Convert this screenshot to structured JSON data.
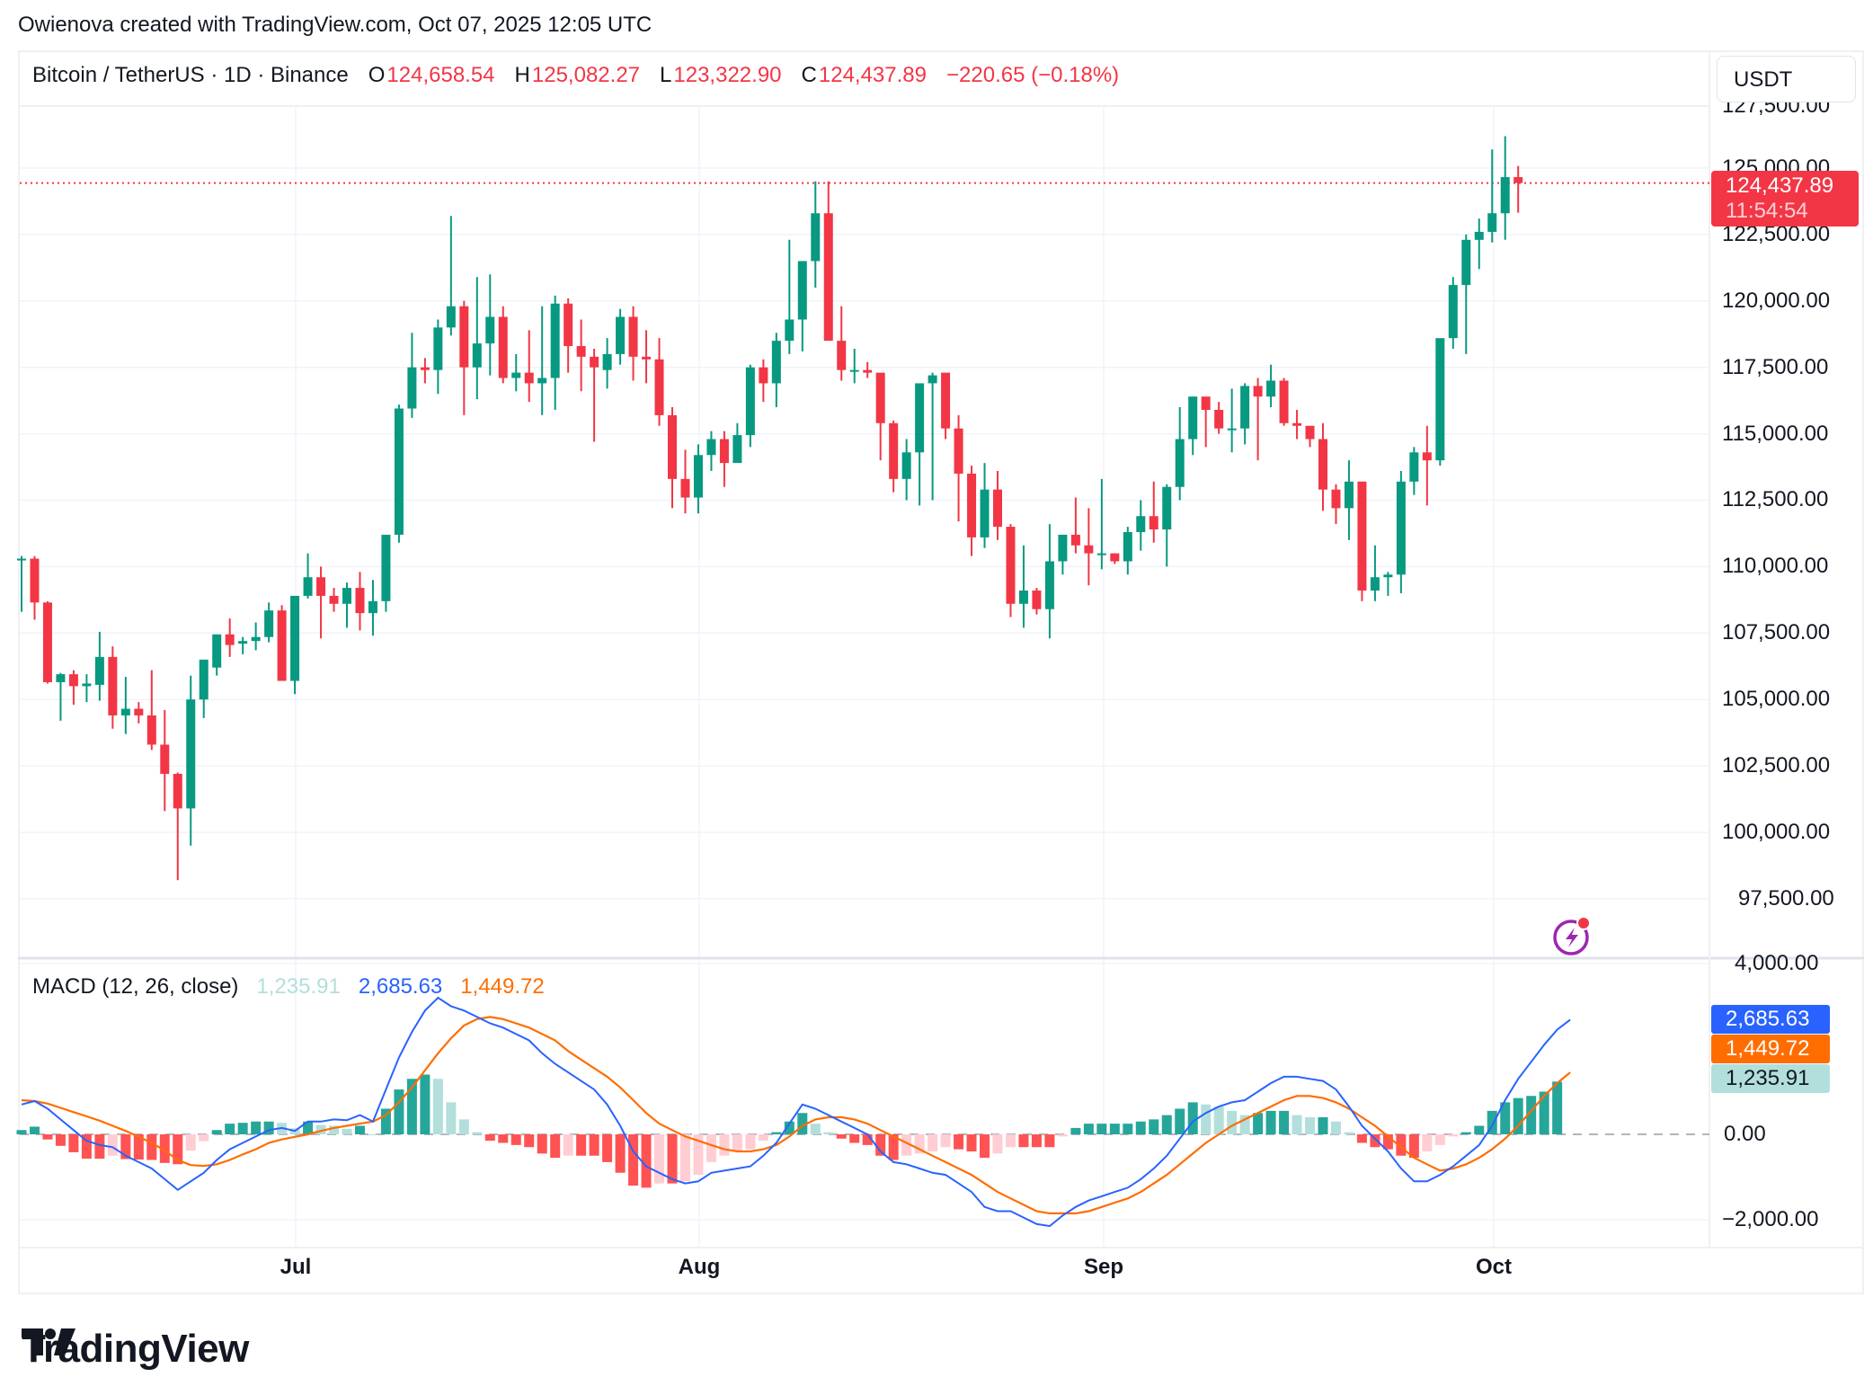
{
  "header": {
    "credit": "Owienova created with TradingView.com, Oct 07, 2025 12:05 UTC"
  },
  "legend": {
    "symbol": "Bitcoin / TetherUS · 1D · Binance",
    "open_label": "O",
    "open": "124,658.54",
    "high_label": "H",
    "high": "125,082.27",
    "low_label": "L",
    "low": "123,322.90",
    "close_label": "C",
    "close": "124,437.89",
    "change": "−220.65 (−0.18%)"
  },
  "currency_button": {
    "label": "USDT"
  },
  "price_axis": {
    "labels": [
      "127,500.00",
      "125,000.00",
      "122,500.00",
      "120,000.00",
      "117,500.00",
      "115,000.00",
      "112,500.00",
      "110,000.00",
      "107,500.00",
      "105,000.00",
      "102,500.00",
      "100,000.00",
      "97,500.00"
    ],
    "last_price": "124,437.89",
    "countdown": "11:54:54"
  },
  "macd": {
    "title": "MACD (12, 26, close)",
    "histogram": "1,235.91",
    "macd": "2,685.63",
    "signal": "1,449.72",
    "axis_labels": [
      "4,000.00",
      "0.00",
      "−2,000.00"
    ]
  },
  "time_axis": {
    "labels": [
      "Jul",
      "Aug",
      "Sep",
      "Oct"
    ]
  },
  "branding": {
    "logo_text": "TradingView"
  },
  "colors": {
    "up": "#089981",
    "down": "#f23645",
    "macd_line": "#2962ff",
    "signal_line": "#ff6d00",
    "hist_up_strong": "#26a69a",
    "hist_up_weak": "#b2dfdb",
    "hist_down_strong": "#ff5252",
    "hist_down_weak": "#ffcdd2",
    "grid": "#f0f3fa",
    "alert_icon": "#9c27b0"
  },
  "chart_data": [
    {
      "type": "candlestick",
      "title": "Bitcoin / TetherUS · 1D · Binance",
      "xlabel": "",
      "ylabel": "USDT",
      "ylim": [
        95000,
        128500
      ],
      "x_ticks": [
        "Jul",
        "Aug",
        "Sep",
        "Oct"
      ],
      "start_date": "2025-06-10",
      "end_date": "2025-10-07",
      "ohlc": [
        [
          110260,
          110400,
          108300,
          110300
        ],
        [
          110300,
          110400,
          108000,
          108650
        ],
        [
          108650,
          108700,
          105600,
          105650
        ],
        [
          105650,
          106000,
          104200,
          105950
        ],
        [
          105950,
          106100,
          104800,
          105500
        ],
        [
          105500,
          105950,
          104900,
          105600
        ],
        [
          105550,
          107550,
          104950,
          106600
        ],
        [
          106600,
          107000,
          103900,
          104400
        ],
        [
          104400,
          105850,
          103700,
          104650
        ],
        [
          104650,
          104900,
          104100,
          104400
        ],
        [
          104400,
          106100,
          103100,
          103300
        ],
        [
          103300,
          104600,
          100800,
          102200
        ],
        [
          102200,
          102250,
          98200,
          100900
        ],
        [
          100900,
          105900,
          99500,
          105000
        ],
        [
          105000,
          106300,
          104300,
          106500
        ],
        [
          106200,
          107350,
          105900,
          107450
        ],
        [
          107450,
          108050,
          106600,
          107050
        ],
        [
          107100,
          107350,
          106700,
          107200
        ],
        [
          107200,
          107900,
          106850,
          107350
        ],
        [
          107350,
          108650,
          107150,
          108350
        ],
        [
          108350,
          108550,
          105700,
          105700
        ],
        [
          105700,
          108400,
          105200,
          108900
        ],
        [
          108900,
          110500,
          108800,
          109600
        ],
        [
          109600,
          110000,
          107300,
          108900
        ],
        [
          108900,
          109200,
          108300,
          108600
        ],
        [
          108600,
          109400,
          107700,
          109200
        ],
        [
          109200,
          109800,
          107600,
          108250
        ],
        [
          108250,
          109500,
          107400,
          108700
        ],
        [
          108700,
          111000,
          108300,
          111200
        ],
        [
          111200,
          116100,
          110900,
          115950
        ],
        [
          115950,
          118800,
          115600,
          117500
        ],
        [
          117500,
          117850,
          116900,
          117400
        ],
        [
          117400,
          119300,
          116500,
          119000
        ],
        [
          119000,
          123200,
          118700,
          119800
        ],
        [
          119800,
          120000,
          115700,
          117500
        ],
        [
          117500,
          120900,
          116300,
          118400
        ],
        [
          118400,
          121000,
          117200,
          119400
        ],
        [
          119400,
          119800,
          116900,
          117100
        ],
        [
          117100,
          118000,
          116600,
          117300
        ],
        [
          117300,
          118900,
          116200,
          116900
        ],
        [
          116900,
          119800,
          115700,
          117100
        ],
        [
          117100,
          120200,
          115900,
          119900
        ],
        [
          119900,
          120100,
          117300,
          118300
        ],
        [
          118300,
          119300,
          116600,
          117900
        ],
        [
          117900,
          118200,
          114700,
          117500
        ],
        [
          117400,
          118600,
          116700,
          118000
        ],
        [
          118000,
          119700,
          117600,
          119400
        ],
        [
          119400,
          119800,
          117000,
          117900
        ],
        [
          117900,
          118900,
          116900,
          117800
        ],
        [
          117800,
          118600,
          115300,
          115700
        ],
        [
          115700,
          116000,
          112200,
          113300
        ],
        [
          113300,
          114400,
          112000,
          112600
        ],
        [
          112600,
          114600,
          112000,
          114200
        ],
        [
          114200,
          115100,
          113600,
          114800
        ],
        [
          114800,
          115100,
          113000,
          113900
        ],
        [
          113900,
          115400,
          114000,
          114950
        ],
        [
          114950,
          117600,
          114500,
          117500
        ],
        [
          117500,
          117800,
          116200,
          116900
        ],
        [
          116900,
          118800,
          116000,
          118500
        ],
        [
          118500,
          122300,
          118000,
          119300
        ],
        [
          119300,
          121500,
          118100,
          121500
        ],
        [
          121500,
          124500,
          120500,
          123300
        ],
        [
          123300,
          124500,
          118800,
          118500
        ],
        [
          118500,
          119800,
          117000,
          117400
        ],
        [
          117400,
          118200,
          116900,
          117400
        ],
        [
          117400,
          117700,
          117100,
          117300
        ],
        [
          117300,
          117200,
          114000,
          115400
        ],
        [
          115400,
          115500,
          112800,
          113300
        ],
        [
          113300,
          114800,
          112500,
          114300
        ],
        [
          114300,
          116300,
          112300,
          116900
        ],
        [
          116900,
          117300,
          112500,
          117200
        ],
        [
          117300,
          117200,
          114800,
          115200
        ],
        [
          115200,
          115700,
          111700,
          113500
        ],
        [
          113500,
          113800,
          110400,
          111100
        ],
        [
          111100,
          113900,
          110700,
          112900
        ],
        [
          112900,
          113600,
          111000,
          111500
        ],
        [
          111500,
          111600,
          108100,
          108600
        ],
        [
          108600,
          110800,
          107700,
          109100
        ],
        [
          109100,
          109200,
          108200,
          108400
        ],
        [
          108400,
          111600,
          107300,
          110200
        ],
        [
          110200,
          111200,
          109700,
          111200
        ],
        [
          111200,
          112600,
          110500,
          110800
        ],
        [
          110800,
          112200,
          109300,
          110500
        ],
        [
          110500,
          113300,
          109900,
          110500
        ],
        [
          110500,
          110500,
          110100,
          110200
        ],
        [
          110200,
          111500,
          109700,
          111300
        ],
        [
          111300,
          112500,
          110600,
          111900
        ],
        [
          111900,
          113200,
          110900,
          111400
        ],
        [
          111400,
          113100,
          110000,
          113000
        ],
        [
          113000,
          116000,
          112500,
          114800
        ],
        [
          114800,
          116400,
          114200,
          116400
        ],
        [
          116400,
          116300,
          114500,
          115900
        ],
        [
          115900,
          116200,
          115000,
          115200
        ],
        [
          115200,
          116700,
          114300,
          115200
        ],
        [
          115200,
          116900,
          114600,
          116800
        ],
        [
          116800,
          117100,
          114000,
          116400
        ],
        [
          116400,
          117600,
          116000,
          117000
        ],
        [
          117000,
          117100,
          115300,
          115400
        ],
        [
          115400,
          115900,
          114800,
          115300
        ],
        [
          115300,
          115200,
          114500,
          114800
        ],
        [
          114800,
          115400,
          112100,
          112900
        ],
        [
          112900,
          113100,
          111600,
          112200
        ],
        [
          112200,
          114000,
          111000,
          113200
        ],
        [
          113200,
          113200,
          108700,
          109100
        ],
        [
          109100,
          110800,
          108700,
          109600
        ],
        [
          109600,
          109800,
          108900,
          109700
        ],
        [
          109700,
          113600,
          109000,
          113200
        ],
        [
          113200,
          114500,
          112700,
          114300
        ],
        [
          114300,
          115300,
          112300,
          114000
        ],
        [
          114000,
          118400,
          113800,
          118600
        ],
        [
          118600,
          120900,
          118200,
          120600
        ],
        [
          120600,
          122500,
          118000,
          122300
        ],
        [
          122300,
          123100,
          121200,
          122600
        ],
        [
          122600,
          125700,
          122200,
          123300
        ],
        [
          123300,
          126200,
          122300,
          124660
        ],
        [
          124660,
          125080,
          123320,
          124440
        ]
      ]
    },
    {
      "type": "macd",
      "title": "MACD (12, 26, close)",
      "ylim": [
        -2600,
        4200
      ],
      "y_ticks": [
        4000,
        0,
        -2000
      ],
      "macd": [
        700,
        780,
        600,
        350,
        100,
        -150,
        -250,
        -300,
        -500,
        -650,
        -800,
        -1050,
        -1300,
        -1100,
        -900,
        -600,
        -350,
        -200,
        -50,
        100,
        150,
        80,
        300,
        300,
        350,
        330,
        450,
        300,
        1050,
        1800,
        2400,
        2900,
        3200,
        3000,
        2900,
        2750,
        2600,
        2500,
        2350,
        2200,
        1900,
        1650,
        1450,
        1250,
        1050,
        700,
        200,
        -400,
        -750,
        -900,
        -1050,
        -1150,
        -1100,
        -900,
        -850,
        -800,
        -750,
        -500,
        -200,
        250,
        700,
        600,
        450,
        300,
        150,
        0,
        -400,
        -650,
        -700,
        -800,
        -900,
        -950,
        -1150,
        -1350,
        -1700,
        -1800,
        -1800,
        -1950,
        -2100,
        -2150,
        -1900,
        -1700,
        -1550,
        -1450,
        -1350,
        -1250,
        -1050,
        -800,
        -500,
        -100,
        300,
        500,
        650,
        750,
        800,
        1000,
        1200,
        1350,
        1350,
        1300,
        1250,
        1050,
        650,
        200,
        -100,
        -400,
        -800,
        -1100,
        -1100,
        -950,
        -750,
        -500,
        -250,
        200,
        800,
        1300,
        1700,
        2100,
        2450,
        2686
      ],
      "signal": [
        800,
        780,
        720,
        620,
        520,
        420,
        320,
        200,
        80,
        -60,
        -200,
        -380,
        -600,
        -720,
        -740,
        -700,
        -600,
        -470,
        -350,
        -200,
        -120,
        -60,
        0,
        80,
        150,
        200,
        250,
        300,
        450,
        750,
        1100,
        1500,
        1900,
        2250,
        2550,
        2700,
        2750,
        2700,
        2600,
        2500,
        2350,
        2200,
        1950,
        1750,
        1550,
        1350,
        1100,
        800,
        500,
        250,
        100,
        -50,
        -150,
        -250,
        -350,
        -400,
        -400,
        -350,
        -250,
        -50,
        200,
        350,
        400,
        400,
        350,
        250,
        100,
        -50,
        -200,
        -350,
        -500,
        -650,
        -800,
        -950,
        -1150,
        -1350,
        -1500,
        -1650,
        -1800,
        -1850,
        -1850,
        -1850,
        -1800,
        -1700,
        -1600,
        -1500,
        -1350,
        -1150,
        -950,
        -700,
        -450,
        -200,
        0,
        200,
        350,
        500,
        650,
        800,
        900,
        900,
        850,
        750,
        600,
        400,
        200,
        -50,
        -300,
        -550,
        -700,
        -850,
        -800,
        -700,
        -550,
        -350,
        -100,
        200,
        550,
        900,
        1200,
        1450
      ],
      "histogram": [
        100,
        180,
        -120,
        -270,
        -420,
        -570,
        -570,
        -500,
        -580,
        -590,
        -600,
        -670,
        -700,
        -380,
        -160,
        100,
        250,
        270,
        300,
        300,
        270,
        140,
        300,
        220,
        200,
        130,
        200,
        0,
        600,
        1050,
        1300,
        1400,
        1300,
        750,
        350,
        50,
        -150,
        -200,
        -250,
        -300,
        -450,
        -550,
        -500,
        -500,
        -500,
        -650,
        -900,
        -1200,
        -1250,
        -1150,
        -1150,
        -1100,
        -950,
        -650,
        -500,
        -400,
        -350,
        -150,
        50,
        300,
        500,
        250,
        50,
        -100,
        -200,
        -250,
        -500,
        -600,
        -500,
        -450,
        -400,
        -300,
        -350,
        -400,
        -550,
        -450,
        -300,
        -300,
        -300,
        -300,
        -50,
        150,
        250,
        250,
        250,
        250,
        300,
        350,
        450,
        600,
        750,
        700,
        650,
        550,
        450,
        500,
        550,
        550,
        450,
        400,
        400,
        300,
        50,
        -200,
        -300,
        -350,
        -500,
        -550,
        -400,
        -250,
        -50,
        50,
        200,
        550,
        750,
        850,
        900,
        1000,
        1235
      ]
    }
  ]
}
